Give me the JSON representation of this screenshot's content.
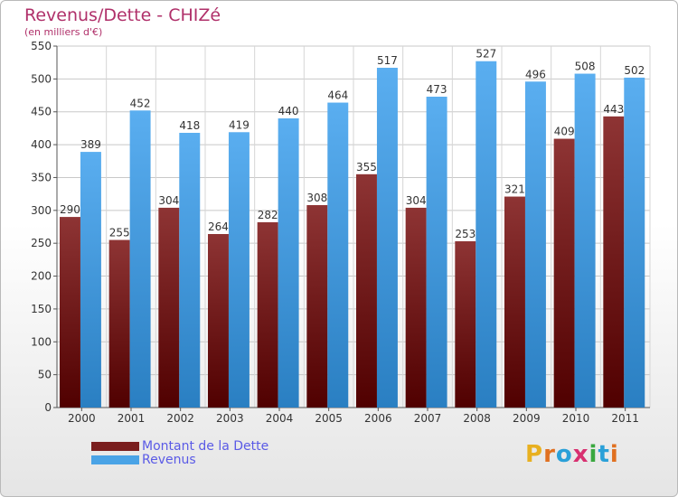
{
  "colors": {
    "dette": "#7a1e1e",
    "revenus": "#4aa3e6",
    "title": "#b0306a",
    "legend_text": "#5a5ae6"
  },
  "chart_data": {
    "type": "bar",
    "title": "Revenus/Dette - CHIZé",
    "subtitle": "(en milliers d'€)",
    "categories": [
      "2000",
      "2001",
      "2002",
      "2003",
      "2004",
      "2005",
      "2006",
      "2007",
      "2008",
      "2009",
      "2010",
      "2011"
    ],
    "series": [
      {
        "name": "Montant de la Dette",
        "values": [
          290,
          255,
          304,
          264,
          282,
          308,
          355,
          304,
          253,
          321,
          409,
          443
        ]
      },
      {
        "name": "Revenus",
        "values": [
          389,
          452,
          418,
          419,
          440,
          464,
          517,
          473,
          527,
          496,
          508,
          502
        ]
      }
    ],
    "ylim": [
      0,
      550
    ],
    "yticks": [
      0,
      50,
      100,
      150,
      200,
      250,
      300,
      350,
      400,
      450,
      500,
      550
    ],
    "grid": true,
    "legend_position": "bottom-left"
  },
  "brand": {
    "text": "Proxiti"
  }
}
